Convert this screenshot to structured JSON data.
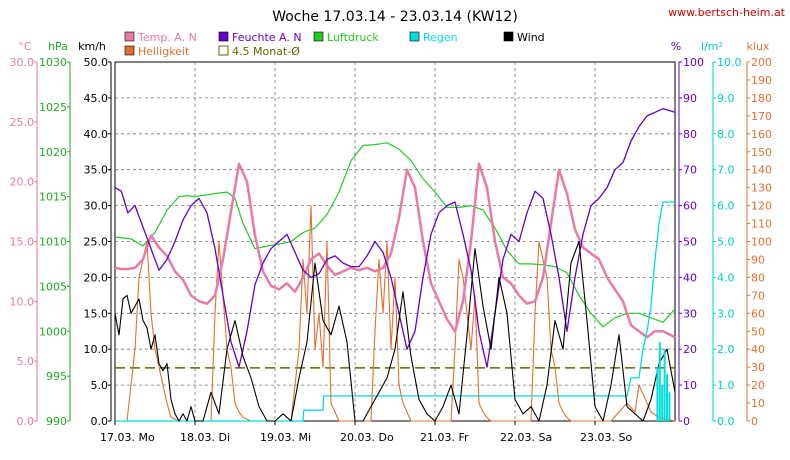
{
  "chart_data": {
    "type": "line",
    "title": "Woche 17.03.14 - 23.03.14 (KW12)",
    "credit": "www.bertsch-heim.at",
    "x_day_labels": [
      "17.03.  Mo",
      "18.03.  Di",
      "19.03.  Mi",
      "20.03.  Do",
      "21.03.  Fr",
      "22.03.  Sa",
      "23.03.  So"
    ],
    "axes": [
      {
        "key": "temp",
        "unit": "°C",
        "range": [
          0,
          30
        ],
        "color": "#e87aa8",
        "ticks": [
          "0.0",
          "5.0",
          "10.0",
          "15.0",
          "20.0",
          "25.0",
          "30.0"
        ]
      },
      {
        "key": "pressure",
        "unit": "hPa",
        "range": [
          990,
          1030
        ],
        "color": "#22aa22",
        "ticks": [
          "990",
          "995",
          "1000",
          "1005",
          "1010",
          "1015",
          "1020",
          "1025",
          "1030"
        ]
      },
      {
        "key": "wind",
        "unit": "km/h",
        "range": [
          0,
          50
        ],
        "color": "#000000",
        "ticks": [
          "0.0",
          "5.0",
          "10.0",
          "15.0",
          "20.0",
          "25.0",
          "30.0",
          "35.0",
          "40.0",
          "45.0",
          "50.0"
        ]
      },
      {
        "key": "humidity",
        "unit": "%",
        "range": [
          0,
          100
        ],
        "color": "#6600cc",
        "ticks": [
          "0",
          "10",
          "20",
          "30",
          "40",
          "50",
          "60",
          "70",
          "80",
          "90",
          "100"
        ]
      },
      {
        "key": "rain",
        "unit": "l/m²",
        "range": [
          0,
          10
        ],
        "color": "#00cccc",
        "ticks": [
          "0.0",
          "1.0",
          "2.0",
          "3.0",
          "4.0",
          "5.0",
          "6.0",
          "7.0",
          "8.0",
          "9.0",
          "10.0"
        ]
      },
      {
        "key": "light",
        "unit": "klux",
        "range": [
          0,
          200
        ],
        "color": "#e07030",
        "ticks": [
          "0",
          "10",
          "20",
          "30",
          "40",
          "50",
          "60",
          "70",
          "80",
          "90",
          "100",
          "110",
          "120",
          "130",
          "140",
          "150",
          "160",
          "170",
          "180",
          "190",
          "200"
        ]
      }
    ],
    "legend": [
      {
        "label": "Temp. A. N",
        "color": "#e87aa8"
      },
      {
        "label": "Helligkeit",
        "color": "#e07030"
      },
      {
        "label": "Feuchte A. N",
        "color": "#6600cc"
      },
      {
        "label": "4.5 Monat-Ø",
        "color": "#666600"
      },
      {
        "label": "Luftdruck",
        "color": "#22cc22"
      },
      {
        "label": "Regen",
        "color": "#00dddd"
      },
      {
        "label": "Wind",
        "color": "#000000"
      }
    ],
    "average_line": {
      "axis": "wind",
      "value": 7.4
    },
    "series": [
      {
        "name": "Temp. A. N",
        "axis": "temp",
        "color": "#e87aa8",
        "x": [
          0,
          0.08,
          0.16,
          0.25,
          0.35,
          0.45,
          0.55,
          0.65,
          0.75,
          0.85,
          0.95,
          1.05,
          1.15,
          1.25,
          1.35,
          1.45,
          1.55,
          1.65,
          1.75,
          1.85,
          1.95,
          2.05,
          2.15,
          2.25,
          2.35,
          2.45,
          2.55,
          2.65,
          2.75,
          2.85,
          2.95,
          3.05,
          3.15,
          3.25,
          3.35,
          3.45,
          3.55,
          3.65,
          3.75,
          3.85,
          3.95,
          4.05,
          4.15,
          4.25,
          4.35,
          4.45,
          4.55,
          4.65,
          4.75,
          4.85,
          4.95,
          5.05,
          5.15,
          5.25,
          5.35,
          5.45,
          5.55,
          5.65,
          5.75,
          5.85,
          5.95,
          6.05,
          6.15,
          6.25,
          6.35,
          6.45,
          6.55,
          6.65,
          6.75,
          6.85,
          7.0
        ],
        "y": [
          12.8,
          12.7,
          12.7,
          12.8,
          13.5,
          15.5,
          14.5,
          13.8,
          12.5,
          11.8,
          10.5,
          10.0,
          9.8,
          10.5,
          13.5,
          17.5,
          21.5,
          20.0,
          15.5,
          12.5,
          11.3,
          11.0,
          11.5,
          10.8,
          12.0,
          13.5,
          14.0,
          13.0,
          12.2,
          12.5,
          12.8,
          12.6,
          12.8,
          12.5,
          12.8,
          14.0,
          17.0,
          21.0,
          19.5,
          15.0,
          11.5,
          10.0,
          8.5,
          7.5,
          10.0,
          15.0,
          21.5,
          19.5,
          15.0,
          12.0,
          11.5,
          10.5,
          9.8,
          10.0,
          12.0,
          16.5,
          21.0,
          19.0,
          16.0,
          14.5,
          14.0,
          13.5,
          12.0,
          11.0,
          10.0,
          8.0,
          7.5,
          7.0,
          7.5,
          7.5,
          7.0
        ]
      },
      {
        "name": "Feuchte A. N",
        "axis": "humidity",
        "color": "#6600cc",
        "x": [
          0,
          0.08,
          0.16,
          0.25,
          0.35,
          0.45,
          0.55,
          0.65,
          0.75,
          0.85,
          0.95,
          1.05,
          1.15,
          1.25,
          1.35,
          1.45,
          1.55,
          1.65,
          1.75,
          1.85,
          1.95,
          2.05,
          2.15,
          2.25,
          2.35,
          2.45,
          2.55,
          2.65,
          2.75,
          2.85,
          2.95,
          3.05,
          3.15,
          3.25,
          3.35,
          3.45,
          3.55,
          3.65,
          3.75,
          3.85,
          3.95,
          4.05,
          4.15,
          4.25,
          4.35,
          4.45,
          4.55,
          4.65,
          4.75,
          4.85,
          4.95,
          5.05,
          5.15,
          5.25,
          5.35,
          5.45,
          5.55,
          5.65,
          5.75,
          5.85,
          5.95,
          6.05,
          6.15,
          6.25,
          6.35,
          6.45,
          6.55,
          6.65,
          6.75,
          6.85,
          7.0
        ],
        "y": [
          65,
          64,
          58,
          60,
          54,
          48,
          42,
          45,
          50,
          56,
          60,
          62,
          58,
          48,
          35,
          22,
          15,
          25,
          38,
          44,
          48,
          50,
          52,
          47,
          42,
          40,
          41,
          45,
          46,
          44,
          43,
          43,
          46,
          50,
          47,
          40,
          30,
          20,
          25,
          40,
          52,
          58,
          60,
          61,
          52,
          42,
          25,
          15,
          30,
          45,
          52,
          50,
          58,
          64,
          62,
          52,
          40,
          25,
          40,
          52,
          60,
          62,
          65,
          70,
          72,
          78,
          82,
          85,
          86,
          87,
          86
        ]
      },
      {
        "name": "Luftdruck",
        "axis": "pressure",
        "color": "#22cc22",
        "x": [
          0,
          0.2,
          0.35,
          0.5,
          0.65,
          0.8,
          0.9,
          1.0,
          1.15,
          1.3,
          1.4,
          1.5,
          1.6,
          1.75,
          1.9,
          2.05,
          2.2,
          2.35,
          2.5,
          2.65,
          2.8,
          2.95,
          3.1,
          3.25,
          3.4,
          3.55,
          3.7,
          3.85,
          4.0,
          4.15,
          4.3,
          4.45,
          4.6,
          4.75,
          4.9,
          5.05,
          5.2,
          5.35,
          5.5,
          5.65,
          5.8,
          5.95,
          6.1,
          6.25,
          6.4,
          6.55,
          6.7,
          6.85,
          7.0
        ],
        "y": [
          1010.5,
          1010.3,
          1009.5,
          1011.0,
          1013.5,
          1015.0,
          1015.1,
          1015.0,
          1015.2,
          1015.4,
          1015.5,
          1014.8,
          1012.0,
          1009.2,
          1009.5,
          1009.7,
          1010.0,
          1011.0,
          1011.5,
          1013.0,
          1015.5,
          1019.0,
          1020.7,
          1020.8,
          1021.0,
          1020.3,
          1019.0,
          1017.0,
          1015.5,
          1013.8,
          1013.8,
          1014.0,
          1013.5,
          1011.5,
          1009.0,
          1007.5,
          1007.5,
          1007.4,
          1007.2,
          1006.5,
          1004.0,
          1002.0,
          1000.5,
          1001.5,
          1002.0,
          1002.0,
          1001.5,
          1001.0,
          1002.5
        ]
      },
      {
        "name": "Wind",
        "axis": "wind",
        "color": "#000000",
        "x": [
          0,
          0.05,
          0.1,
          0.15,
          0.2,
          0.25,
          0.3,
          0.35,
          0.4,
          0.45,
          0.5,
          0.55,
          0.6,
          0.65,
          0.7,
          0.75,
          0.8,
          0.85,
          0.9,
          0.95,
          1.0,
          1.1,
          1.2,
          1.3,
          1.4,
          1.5,
          1.6,
          1.7,
          1.8,
          1.9,
          2.0,
          2.1,
          2.2,
          2.3,
          2.4,
          2.5,
          2.6,
          2.7,
          2.8,
          2.9,
          3.0,
          3.1,
          3.2,
          3.3,
          3.4,
          3.5,
          3.6,
          3.7,
          3.8,
          3.9,
          4.0,
          4.1,
          4.2,
          4.3,
          4.4,
          4.5,
          4.6,
          4.7,
          4.8,
          4.9,
          5.0,
          5.1,
          5.2,
          5.3,
          5.4,
          5.5,
          5.6,
          5.7,
          5.8,
          5.9,
          6.0,
          6.1,
          6.2,
          6.3,
          6.4,
          6.5,
          6.6,
          6.7,
          6.8,
          6.9,
          7.0
        ],
        "y": [
          15,
          12,
          17,
          17.5,
          15,
          16,
          17,
          14,
          13,
          10,
          12,
          8,
          7,
          8,
          3,
          1,
          0,
          1,
          0,
          2,
          0,
          0,
          4,
          1,
          10,
          14,
          9,
          6,
          2,
          0,
          0,
          1,
          0,
          6,
          11,
          22,
          14,
          12,
          16,
          11,
          0,
          0,
          2,
          4,
          6,
          10,
          18,
          9,
          3,
          1,
          0,
          2,
          5,
          1,
          12,
          24,
          16,
          10,
          20,
          15,
          3,
          1,
          2,
          0,
          5,
          14,
          10,
          22,
          25,
          14,
          2,
          0,
          5,
          12,
          2,
          1,
          0,
          3,
          8,
          10,
          4
        ]
      },
      {
        "name": "Helligkeit",
        "axis": "light",
        "color": "#e07030",
        "x": [
          0,
          0.15,
          0.25,
          0.3,
          0.35,
          0.4,
          0.45,
          0.5,
          0.55,
          0.6,
          0.65,
          0.7,
          0.8,
          1.0,
          1.1,
          1.2,
          1.25,
          1.3,
          1.35,
          1.4,
          1.45,
          1.5,
          1.55,
          1.6,
          1.7,
          1.9,
          2.1,
          2.2,
          2.3,
          2.35,
          2.4,
          2.45,
          2.5,
          2.55,
          2.6,
          2.65,
          2.7,
          2.8,
          3.0,
          3.1,
          3.2,
          3.25,
          3.3,
          3.35,
          3.4,
          3.45,
          3.5,
          3.55,
          3.6,
          3.65,
          3.7,
          3.8,
          4.0,
          4.1,
          4.2,
          4.25,
          4.3,
          4.35,
          4.4,
          4.45,
          4.5,
          4.55,
          4.6,
          4.65,
          4.7,
          4.8,
          5.0,
          5.1,
          5.2,
          5.25,
          5.3,
          5.35,
          5.4,
          5.45,
          5.5,
          5.55,
          5.6,
          5.65,
          5.7,
          5.8,
          6.0,
          6.2,
          6.3,
          6.4,
          6.5,
          6.55,
          6.6,
          6.7,
          6.8,
          7.0
        ],
        "y": [
          0,
          0,
          40,
          80,
          90,
          100,
          60,
          40,
          30,
          20,
          10,
          2,
          0,
          0,
          0,
          0,
          60,
          100,
          70,
          40,
          30,
          10,
          5,
          2,
          0,
          0,
          0,
          0,
          40,
          90,
          60,
          120,
          40,
          60,
          30,
          100,
          10,
          0,
          0,
          0,
          0,
          50,
          90,
          60,
          100,
          40,
          80,
          20,
          10,
          5,
          0,
          0,
          0,
          0,
          0,
          40,
          90,
          80,
          60,
          40,
          70,
          10,
          5,
          2,
          0,
          0,
          0,
          0,
          0,
          60,
          100,
          90,
          80,
          40,
          30,
          10,
          5,
          2,
          0,
          0,
          0,
          0,
          5,
          10,
          5,
          20,
          15,
          5,
          2,
          0
        ]
      },
      {
        "name": "Regen",
        "axis": "rain",
        "color": "#00dddd",
        "x": [
          0,
          2.35,
          2.36,
          2.6,
          2.61,
          6.4,
          6.45,
          6.55,
          6.6,
          6.65,
          6.7,
          6.75,
          6.8,
          6.85,
          6.9,
          7.0
        ],
        "y": [
          0,
          0,
          0.3,
          0.3,
          0.7,
          0.7,
          1.2,
          1.2,
          2.0,
          2.5,
          3.2,
          4.5,
          5.5,
          6.1,
          6.1,
          6.1
        ]
      }
    ]
  }
}
